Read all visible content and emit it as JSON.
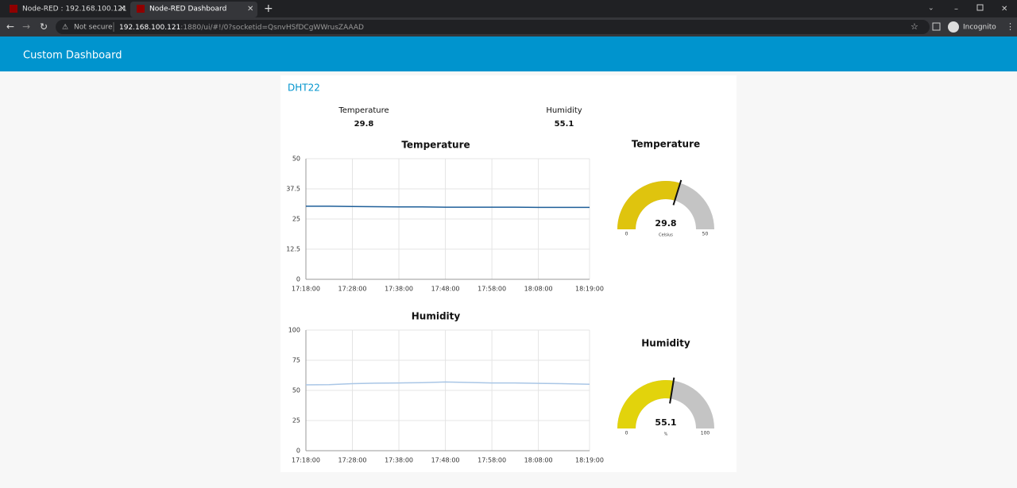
{
  "browser": {
    "tabs": [
      "Node-RED : 192.168.100.121",
      "Node-RED Dashboard"
    ],
    "security": "Not secure",
    "url_host": "192.168.100.121",
    "url_rest": ":1880/ui/#!/0?socketid=QsnvHSfDCgWWrusZAAAD",
    "profile": "Incognito"
  },
  "header": {
    "title": "Custom Dashboard"
  },
  "group": {
    "title": "DHT22",
    "texts": [
      {
        "label": "Temperature",
        "value": 29.8
      },
      {
        "label": "Humidity",
        "value": 55.1
      }
    ]
  },
  "chart_data": [
    {
      "type": "line",
      "title": "Temperature",
      "color": "#1f5f99",
      "grid": true,
      "x": [
        "17:18:00",
        "17:23:00",
        "17:28:00",
        "17:33:00",
        "17:38:00",
        "17:43:00",
        "17:48:00",
        "17:53:00",
        "17:58:00",
        "18:03:00",
        "18:08:00",
        "18:13:00",
        "18:18:00",
        "18:19:00"
      ],
      "values": [
        30.3,
        30.3,
        30.2,
        30.1,
        30.0,
        30.0,
        29.9,
        29.9,
        29.9,
        29.9,
        29.8,
        29.8,
        29.8,
        29.8
      ],
      "xlim": [
        "17:18:00",
        "18:19:00"
      ],
      "xticks": [
        "17:18:00",
        "17:28:00",
        "17:38:00",
        "17:48:00",
        "17:58:00",
        "18:08:00",
        "18:19:00"
      ],
      "ylim": [
        0,
        50
      ],
      "yticks": [
        0,
        12.5,
        25,
        37.5,
        50
      ]
    },
    {
      "type": "line",
      "title": "Humidity",
      "color": "#a9c6e6",
      "grid": true,
      "x": [
        "17:18:00",
        "17:23:00",
        "17:28:00",
        "17:33:00",
        "17:38:00",
        "17:43:00",
        "17:48:00",
        "17:53:00",
        "17:58:00",
        "18:03:00",
        "18:08:00",
        "18:13:00",
        "18:18:00",
        "18:19:00"
      ],
      "values": [
        54.6,
        54.8,
        55.6,
        56.0,
        56.2,
        56.4,
        57.0,
        56.6,
        56.2,
        56.2,
        55.8,
        55.6,
        55.2,
        55.1
      ],
      "xlim": [
        "17:18:00",
        "18:19:00"
      ],
      "xticks": [
        "17:18:00",
        "17:28:00",
        "17:38:00",
        "17:48:00",
        "17:58:00",
        "18:08:00",
        "18:19:00"
      ],
      "ylim": [
        0,
        100
      ],
      "yticks": [
        0,
        25,
        50,
        75,
        100
      ]
    },
    {
      "type": "gauge",
      "title": "Temperature",
      "value": 29.8,
      "min": 0,
      "max": 50,
      "units": "Celsius",
      "color": "#dfc40e",
      "track_color": "#c4c4c4"
    },
    {
      "type": "gauge",
      "title": "Humidity",
      "value": 55.1,
      "min": 0,
      "max": 100,
      "units": "%",
      "color": "#e2d30c",
      "track_color": "#c4c4c4"
    }
  ]
}
